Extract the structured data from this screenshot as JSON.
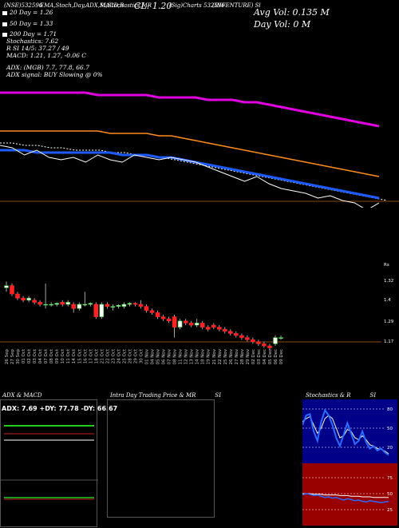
{
  "header": {
    "left_code": "(NSE)",
    "code": "532596",
    "tags": "EMA,Stoch,Day,ADX,MACD,B",
    "tags2": "SI,Stochastics,MR",
    "cl_label": "CL: 1.20",
    "sig_code": "(Sig)Charts 532596",
    "company": "(INFENTURE) Sl",
    "avg_vol": "Avg Vol: 0.135 M",
    "day_vol": "Day Vol: 0   M"
  },
  "stats": {
    "d20": "20 Day = 1.26",
    "d50": "50 Day = 1.33",
    "d200": "200 Day = 1.71",
    "stoch": "Stochastics: 7.62",
    "rsi": "R               SI 14/5: 37.27 / 49",
    "macd": "MACD: 1.21, 1.27, -0.06  C",
    "adx": "ADX:                                       (MGB) 7.7,  77.8,  66.7",
    "adx_signal": "ADX  signal:                                   BUY Slowing @ 0%"
  },
  "legend_colors": {
    "d20": "#ffffff",
    "d50": "#1e5bff",
    "d200": "#ff8c1a"
  },
  "panels": {
    "adx_title": "ADX  & MACD",
    "adx_values": "ADX: 7.69  +DY: 77.78  -DY: 66.67",
    "intra_title": "Intra Day Trading Price  & MR",
    "intra_title2": "SI",
    "stoch_title": "Stochastics & R",
    "stoch_title2": "SI",
    "stoch_ticks": [
      "80",
      "50",
      "20"
    ],
    "rsi_ticks": [
      "75",
      "50",
      "25"
    ]
  },
  "chart_data": {
    "type": "candlestick",
    "price_ticks": [
      "1.32",
      "1.4",
      "1.29",
      "1.17"
    ],
    "unit_label": "Rs",
    "dates": [
      "26 Sep",
      "27 Sep",
      "30 Sep",
      "01 Oct",
      "02 Oct",
      "03 Oct",
      "04 Oct",
      "07 Oct",
      "08 Oct",
      "09 Oct",
      "10 Oct",
      "11 Oct",
      "14 Oct",
      "15 Oct",
      "16 Oct",
      "17 Oct",
      "18 Oct",
      "21 Oct",
      "22 Oct",
      "23 Oct",
      "24 Oct",
      "25 Oct",
      "28 Oct",
      "29 Oct",
      "30 Oct",
      "01 Nov",
      "04 Nov",
      "05 Nov",
      "06 Nov",
      "07 Nov",
      "08 Nov",
      "11 Nov",
      "12 Nov",
      "13 Nov",
      "14 Nov",
      "18 Nov",
      "19 Nov",
      "21 Nov",
      "22 Nov",
      "25 Nov",
      "26 Nov",
      "27 Nov",
      "28 Nov",
      "29 Nov",
      "02 Dec",
      "03 Dec",
      "04 Dec",
      "05 Dec",
      "06 Dec",
      "09 Dec"
    ],
    "candles": [
      {
        "o": 1.44,
        "h": 1.47,
        "l": 1.42,
        "c": 1.45
      },
      {
        "o": 1.45,
        "h": 1.46,
        "l": 1.4,
        "c": 1.41
      },
      {
        "o": 1.41,
        "h": 1.42,
        "l": 1.38,
        "c": 1.39
      },
      {
        "o": 1.39,
        "h": 1.4,
        "l": 1.37,
        "c": 1.38
      },
      {
        "o": 1.38,
        "h": 1.4,
        "l": 1.37,
        "c": 1.39
      },
      {
        "o": 1.38,
        "h": 1.39,
        "l": 1.36,
        "c": 1.37
      },
      {
        "o": 1.37,
        "h": 1.38,
        "l": 1.35,
        "c": 1.36
      },
      {
        "o": 1.36,
        "h": 1.46,
        "l": 1.34,
        "c": 1.36
      },
      {
        "o": 1.36,
        "h": 1.37,
        "l": 1.35,
        "c": 1.36
      },
      {
        "o": 1.36,
        "h": 1.37,
        "l": 1.35,
        "c": 1.365
      },
      {
        "o": 1.37,
        "h": 1.38,
        "l": 1.35,
        "c": 1.36
      },
      {
        "o": 1.36,
        "h": 1.38,
        "l": 1.35,
        "c": 1.37
      },
      {
        "o": 1.36,
        "h": 1.37,
        "l": 1.32,
        "c": 1.34
      },
      {
        "o": 1.34,
        "h": 1.37,
        "l": 1.33,
        "c": 1.36
      },
      {
        "o": 1.36,
        "h": 1.42,
        "l": 1.35,
        "c": 1.36
      },
      {
        "o": 1.36,
        "h": 1.37,
        "l": 1.35,
        "c": 1.365
      },
      {
        "o": 1.36,
        "h": 1.37,
        "l": 1.29,
        "c": 1.3
      },
      {
        "o": 1.3,
        "h": 1.37,
        "l": 1.29,
        "c": 1.36
      },
      {
        "o": 1.36,
        "h": 1.37,
        "l": 1.34,
        "c": 1.35
      },
      {
        "o": 1.35,
        "h": 1.36,
        "l": 1.33,
        "c": 1.35
      },
      {
        "o": 1.35,
        "h": 1.36,
        "l": 1.34,
        "c": 1.355
      },
      {
        "o": 1.35,
        "h": 1.37,
        "l": 1.34,
        "c": 1.36
      },
      {
        "o": 1.36,
        "h": 1.37,
        "l": 1.35,
        "c": 1.365
      },
      {
        "o": 1.365,
        "h": 1.37,
        "l": 1.35,
        "c": 1.36
      },
      {
        "o": 1.36,
        "h": 1.38,
        "l": 1.34,
        "c": 1.35
      },
      {
        "o": 1.35,
        "h": 1.36,
        "l": 1.32,
        "c": 1.33
      },
      {
        "o": 1.33,
        "h": 1.34,
        "l": 1.31,
        "c": 1.32
      },
      {
        "o": 1.32,
        "h": 1.33,
        "l": 1.29,
        "c": 1.3
      },
      {
        "o": 1.3,
        "h": 1.31,
        "l": 1.28,
        "c": 1.29
      },
      {
        "o": 1.29,
        "h": 1.3,
        "l": 1.27,
        "c": 1.28
      },
      {
        "o": 1.3,
        "h": 1.31,
        "l": 1.2,
        "c": 1.25
      },
      {
        "o": 1.25,
        "h": 1.29,
        "l": 1.24,
        "c": 1.28
      },
      {
        "o": 1.28,
        "h": 1.29,
        "l": 1.26,
        "c": 1.27
      },
      {
        "o": 1.27,
        "h": 1.28,
        "l": 1.25,
        "c": 1.26
      },
      {
        "o": 1.26,
        "h": 1.29,
        "l": 1.25,
        "c": 1.27
      },
      {
        "o": 1.27,
        "h": 1.28,
        "l": 1.24,
        "c": 1.25
      },
      {
        "o": 1.25,
        "h": 1.26,
        "l": 1.23,
        "c": 1.24
      },
      {
        "o": 1.26,
        "h": 1.27,
        "l": 1.24,
        "c": 1.25
      },
      {
        "o": 1.25,
        "h": 1.26,
        "l": 1.23,
        "c": 1.24
      },
      {
        "o": 1.24,
        "h": 1.25,
        "l": 1.22,
        "c": 1.23
      },
      {
        "o": 1.23,
        "h": 1.24,
        "l": 1.21,
        "c": 1.22
      },
      {
        "o": 1.22,
        "h": 1.23,
        "l": 1.2,
        "c": 1.21
      },
      {
        "o": 1.21,
        "h": 1.22,
        "l": 1.19,
        "c": 1.2
      },
      {
        "o": 1.2,
        "h": 1.21,
        "l": 1.18,
        "c": 1.19
      },
      {
        "o": 1.19,
        "h": 1.2,
        "l": 1.17,
        "c": 1.18
      },
      {
        "o": 1.18,
        "h": 1.19,
        "l": 1.16,
        "c": 1.17
      },
      {
        "o": 1.17,
        "h": 1.18,
        "l": 1.15,
        "c": 1.16
      },
      {
        "o": 1.16,
        "h": 1.17,
        "l": 1.14,
        "c": 1.15
      },
      {
        "o": 1.17,
        "h": 1.21,
        "l": 1.16,
        "c": 1.2
      },
      {
        "o": 1.2,
        "h": 1.21,
        "l": 1.19,
        "c": 1.2
      }
    ],
    "ema_panel": {
      "ema200": [
        1.71,
        1.71,
        1.71,
        1.71,
        1.71,
        1.71,
        1.71,
        1.71,
        1.7,
        1.7,
        1.7,
        1.7,
        1.7,
        1.69,
        1.69,
        1.69,
        1.69,
        1.68,
        1.68,
        1.68,
        1.67,
        1.67,
        1.66,
        1.65,
        1.64,
        1.63,
        1.62,
        1.61,
        1.6,
        1.59,
        1.58,
        1.57
      ],
      "ema50": [
        1.55,
        1.55,
        1.55,
        1.55,
        1.55,
        1.55,
        1.55,
        1.55,
        1.55,
        1.54,
        1.54,
        1.54,
        1.54,
        1.53,
        1.53,
        1.52,
        1.51,
        1.5,
        1.49,
        1.48,
        1.47,
        1.46,
        1.45,
        1.44,
        1.43,
        1.42,
        1.41,
        1.4,
        1.39,
        1.38,
        1.37,
        1.36
      ],
      "ema20": [
        1.47,
        1.47,
        1.47,
        1.46,
        1.46,
        1.46,
        1.46,
        1.46,
        1.46,
        1.46,
        1.45,
        1.45,
        1.45,
        1.44,
        1.44,
        1.43,
        1.42,
        1.41,
        1.4,
        1.39,
        1.38,
        1.37,
        1.36,
        1.35,
        1.34,
        1.33,
        1.32,
        1.31,
        1.3,
        1.29,
        1.28,
        1.27
      ],
      "price": [
        1.49,
        1.48,
        1.45,
        1.47,
        1.44,
        1.43,
        1.44,
        1.42,
        1.45,
        1.43,
        1.42,
        1.45,
        1.44,
        1.43,
        1.44,
        1.43,
        1.42,
        1.4,
        1.38,
        1.36,
        1.34,
        1.36,
        1.33,
        1.31,
        1.3,
        1.29,
        1.27,
        1.28,
        1.26,
        1.25,
        1.22,
        1.25
      ],
      "ema_dotted": [
        1.5,
        1.5,
        1.49,
        1.49,
        1.48,
        1.48,
        1.47,
        1.47,
        1.47,
        1.46,
        1.46,
        1.45,
        1.45,
        1.44,
        1.43,
        1.42,
        1.41,
        1.4,
        1.39,
        1.38,
        1.37,
        1.36,
        1.35,
        1.34,
        1.33,
        1.32,
        1.31,
        1.3,
        1.29,
        1.28,
        1.27,
        1.26
      ]
    },
    "stochastics": {
      "k": [
        55,
        70,
        72,
        45,
        30,
        60,
        78,
        70,
        55,
        35,
        22,
        40,
        58,
        42,
        25,
        30,
        45,
        28,
        18,
        22,
        15,
        18,
        12,
        8
      ],
      "d": [
        60,
        65,
        68,
        55,
        42,
        50,
        65,
        70,
        65,
        50,
        35,
        38,
        48,
        45,
        35,
        32,
        38,
        32,
        24,
        22,
        18,
        17,
        14,
        10
      ]
    },
    "rsi": {
      "rsi": [
        48,
        50,
        49,
        47,
        48,
        46,
        44,
        45,
        43,
        44,
        42,
        40,
        42,
        41,
        39,
        40,
        38,
        37,
        39,
        38,
        37,
        36,
        37,
        38
      ],
      "mrsi": [
        50,
        50,
        50,
        49,
        49,
        49,
        48,
        48,
        48,
        48,
        47,
        47,
        47,
        46,
        46,
        46,
        45,
        45,
        45,
        44,
        44,
        44,
        44,
        44
      ]
    }
  }
}
